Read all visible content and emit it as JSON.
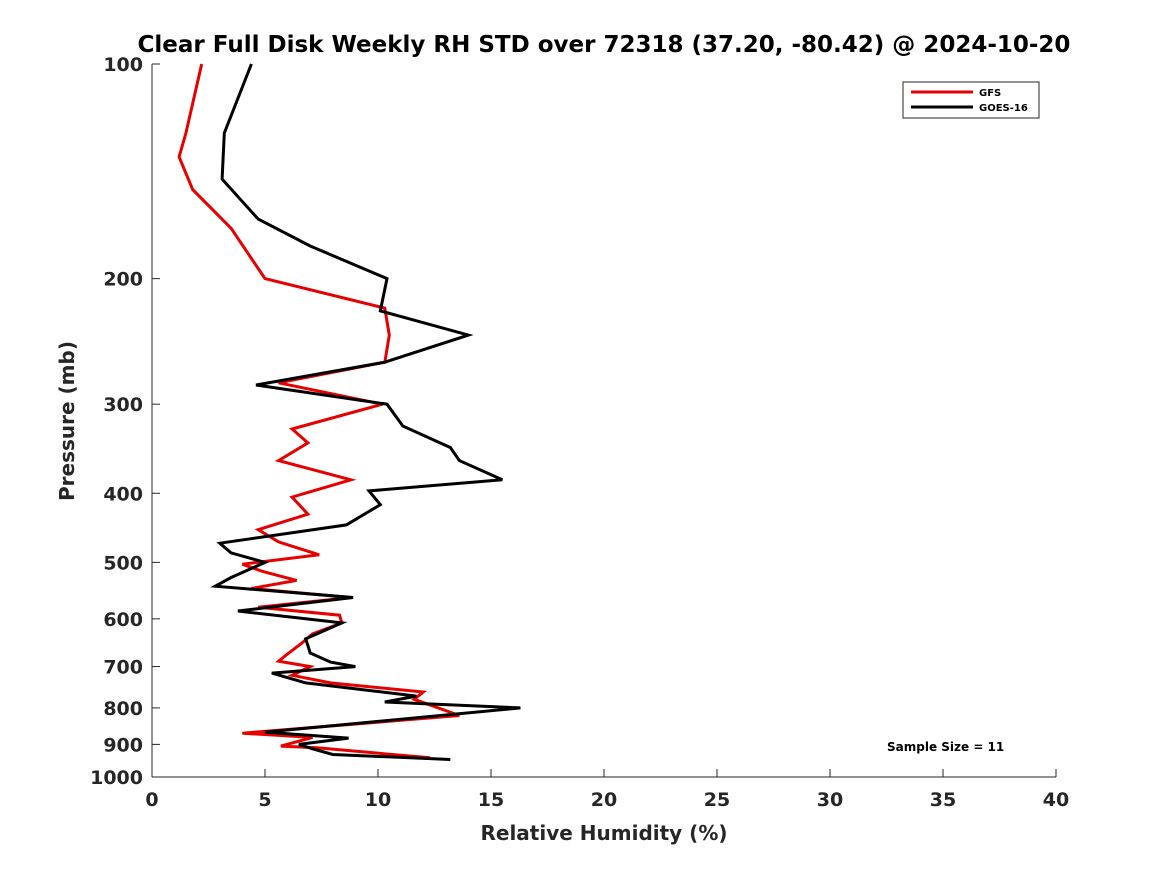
{
  "chart_data": {
    "type": "line",
    "title": "Clear Full Disk Weekly RH STD over 72318 (37.20, -80.42) @ 2024-10-20",
    "xlabel": "Relative Humidity (%)",
    "ylabel": "Pressure (mb)",
    "xlim": [
      0,
      40
    ],
    "ylim": [
      100,
      1000
    ],
    "yscale": "log",
    "yreversed": true,
    "xticks": [
      "0",
      "5",
      "10",
      "15",
      "20",
      "25",
      "30",
      "35",
      "40"
    ],
    "yticks": [
      "100",
      "200",
      "300",
      "400",
      "500",
      "600",
      "700",
      "800",
      "900",
      "1000"
    ],
    "grid": false,
    "legend_position": "top-right",
    "annotation": "Sample Size = 11",
    "series": [
      {
        "name": "GFS",
        "color": "#e60000",
        "points": [
          [
            2.2,
            100
          ],
          [
            1.5,
            125
          ],
          [
            1.2,
            135
          ],
          [
            1.8,
            150
          ],
          [
            3.5,
            170
          ],
          [
            5.0,
            200
          ],
          [
            10.3,
            220
          ],
          [
            10.5,
            240
          ],
          [
            10.3,
            262
          ],
          [
            5.6,
            280
          ],
          [
            10.2,
            300
          ],
          [
            6.2,
            325
          ],
          [
            6.9,
            340
          ],
          [
            5.6,
            360
          ],
          [
            8.8,
            383
          ],
          [
            6.2,
            405
          ],
          [
            6.9,
            428
          ],
          [
            4.7,
            450
          ],
          [
            5.6,
            468
          ],
          [
            7.4,
            488
          ],
          [
            4.0,
            503
          ],
          [
            4.9,
            515
          ],
          [
            6.4,
            530
          ],
          [
            4.4,
            544
          ],
          [
            8.8,
            560
          ],
          [
            4.7,
            578
          ],
          [
            8.3,
            593
          ],
          [
            8.4,
            608
          ],
          [
            7.1,
            630
          ],
          [
            6.6,
            650
          ],
          [
            6.0,
            672
          ],
          [
            5.6,
            688
          ],
          [
            7.0,
            700
          ],
          [
            6.2,
            720
          ],
          [
            7.9,
            738
          ],
          [
            12.0,
            760
          ],
          [
            11.6,
            778
          ],
          [
            13.6,
            820
          ],
          [
            4.0,
            868
          ],
          [
            7.1,
            880
          ],
          [
            5.7,
            905
          ],
          [
            7.3,
            910
          ],
          [
            12.3,
            940
          ]
        ]
      },
      {
        "name": "GOES-16",
        "color": "#000000",
        "points": [
          [
            4.4,
            100
          ],
          [
            3.2,
            125
          ],
          [
            3.1,
            145
          ],
          [
            4.7,
            165
          ],
          [
            7.0,
            180
          ],
          [
            10.4,
            200
          ],
          [
            10.1,
            222
          ],
          [
            14.0,
            240
          ],
          [
            10.3,
            262
          ],
          [
            4.6,
            282
          ],
          [
            10.4,
            300
          ],
          [
            11.1,
            322
          ],
          [
            13.2,
            345
          ],
          [
            13.6,
            360
          ],
          [
            15.5,
            383
          ],
          [
            9.6,
            397
          ],
          [
            10.1,
            415
          ],
          [
            8.6,
            443
          ],
          [
            3.0,
            470
          ],
          [
            3.5,
            485
          ],
          [
            5.0,
            500
          ],
          [
            3.5,
            525
          ],
          [
            2.8,
            540
          ],
          [
            8.9,
            560
          ],
          [
            3.8,
            585
          ],
          [
            6.8,
            600
          ],
          [
            8.4,
            608
          ],
          [
            6.8,
            640
          ],
          [
            7.0,
            670
          ],
          [
            7.9,
            690
          ],
          [
            9.0,
            700
          ],
          [
            5.3,
            715
          ],
          [
            6.8,
            738
          ],
          [
            11.7,
            770
          ],
          [
            10.3,
            785
          ],
          [
            16.3,
            800
          ],
          [
            5.0,
            865
          ],
          [
            8.7,
            882
          ],
          [
            6.5,
            900
          ],
          [
            7.1,
            913
          ],
          [
            8.0,
            930
          ],
          [
            13.2,
            945
          ]
        ]
      }
    ]
  }
}
